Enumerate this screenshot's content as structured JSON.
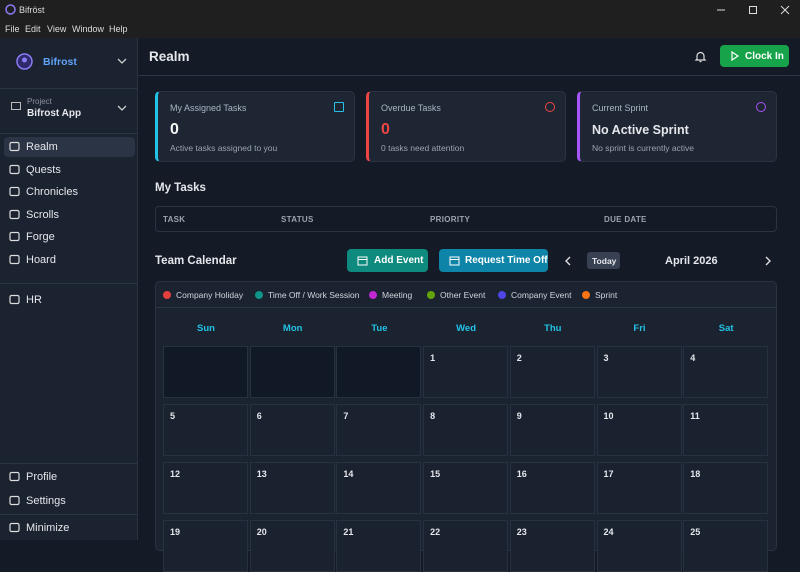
{
  "window": {
    "title": "Bifröst",
    "menu": [
      "File",
      "Edit",
      "View",
      "Window",
      "Help"
    ]
  },
  "sidebar": {
    "brand": "Bifrost",
    "project_label": "Project",
    "project_name": "Bifrost App",
    "nav": [
      "Realm",
      "Quests",
      "Chronicles",
      "Scrolls",
      "Forge",
      "Hoard"
    ],
    "active": "Realm",
    "extra_nav": [
      "HR"
    ],
    "bottom": [
      "Profile",
      "Settings"
    ],
    "minimize": "Minimize"
  },
  "header": {
    "title": "Realm",
    "clock_in": "Clock In"
  },
  "cards": [
    {
      "title": "My Assigned Tasks",
      "value": "0",
      "subtitle": "Active tasks assigned to you",
      "color": "#22c3e6"
    },
    {
      "title": "Overdue Tasks",
      "value": "0",
      "subtitle": "0 tasks need attention",
      "color": "#ef4444"
    },
    {
      "title": "Current Sprint",
      "value": "No Active Sprint",
      "subtitle": "No sprint is currently active",
      "color": "#a855f7"
    }
  ],
  "tasks": {
    "title": "My Tasks",
    "columns": [
      "TASK",
      "STATUS",
      "PRIORITY",
      "DUE DATE"
    ]
  },
  "calendar": {
    "title": "Team Calendar",
    "add_event": "Add Event",
    "request_time_off": "Request Time Off",
    "today": "Today",
    "month": "April 2026",
    "legend": [
      {
        "name": "Company Holiday",
        "color": "#e53e3e"
      },
      {
        "name": "Time Off / Work Session",
        "color": "#0d9488"
      },
      {
        "name": "Meeting",
        "color": "#c026d3"
      },
      {
        "name": "Other Event",
        "color": "#65a30d"
      },
      {
        "name": "Company Event",
        "color": "#4f46e5"
      },
      {
        "name": "Sprint",
        "color": "#f97316"
      }
    ],
    "weekdays": [
      "Sun",
      "Mon",
      "Tue",
      "Wed",
      "Thu",
      "Fri",
      "Sat"
    ],
    "weeks": [
      [
        null,
        null,
        null,
        1,
        2,
        3,
        4
      ],
      [
        5,
        6,
        7,
        8,
        9,
        10,
        11
      ],
      [
        12,
        13,
        14,
        15,
        16,
        17,
        18
      ],
      [
        19,
        20,
        21,
        22,
        23,
        24,
        25
      ]
    ]
  }
}
